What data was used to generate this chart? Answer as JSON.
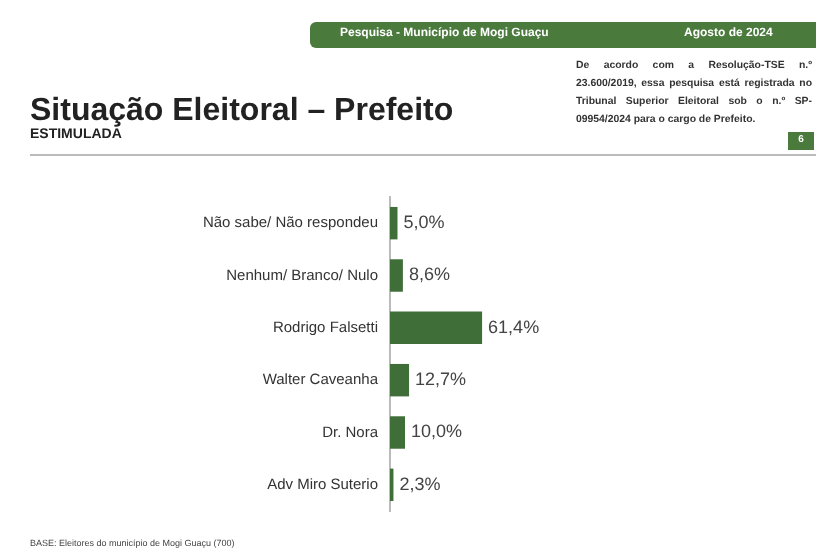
{
  "chart_data": {
    "type": "bar",
    "orientation": "horizontal",
    "title": "Situação Eleitoral – Prefeito",
    "subtitle": "ESTIMULADA",
    "categories": [
      "Não sabe/ Não respondeu",
      "Nenhum/ Branco/ Nulo",
      "Rodrigo Falsetti",
      "Walter Caveanha",
      "Dr. Nora",
      "Adv Miro Suterio"
    ],
    "values": [
      5.0,
      8.6,
      61.4,
      12.7,
      10.0,
      2.3
    ],
    "value_labels": [
      "5,0%",
      "8,6%",
      "61,4%",
      "12,7%",
      "10,0%",
      "2,3%"
    ],
    "color": "#3f6e38",
    "tick_labels": "y",
    "annotations": [
      "Pesquisa - Município de Mogi Guaçu",
      "Agosto de 2024",
      "De acordo com a Resolução-TSE n.º 23.600/2019, essa pesquisa está registrada no Tribunal Superior Eleitoral sob o n.º SP-09954/2024 para o cargo de Prefeito.",
      "6",
      "BASE: Eleitores do município de Mogi Guaçu (700)"
    ]
  }
}
